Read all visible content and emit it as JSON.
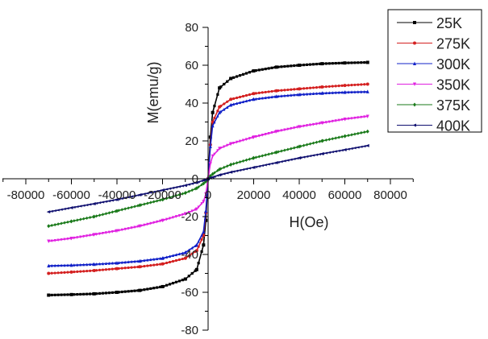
{
  "chart_data": {
    "type": "line",
    "title": "",
    "xlabel": "H(Oe)",
    "ylabel": "M(emu/g)",
    "xlim": [
      -90000,
      90000
    ],
    "ylim": [
      -80,
      80
    ],
    "xticks": [
      -80000,
      -60000,
      -40000,
      -20000,
      0,
      20000,
      40000,
      60000,
      80000
    ],
    "xtick_labels": [
      "-80000",
      "-60000",
      "-40000",
      "-20000",
      "0",
      "20000",
      "40000",
      "60000",
      "80000"
    ],
    "yticks": [
      -80,
      -60,
      -40,
      -20,
      0,
      20,
      40,
      60,
      80
    ],
    "ytick_labels": [
      "-80",
      "-60",
      "-40",
      "-20",
      "0",
      "20",
      "40",
      "60",
      "80"
    ],
    "grid": false,
    "legend_position": "top-right",
    "x": [
      -70000,
      -60000,
      -50000,
      -40000,
      -30000,
      -20000,
      -10000,
      -5000,
      -2000,
      -1000,
      0,
      1000,
      2000,
      5000,
      10000,
      20000,
      30000,
      40000,
      50000,
      60000,
      70000
    ],
    "series": [
      {
        "name": "25K",
        "color": "#000000",
        "marker": "square",
        "values": [
          -61.5,
          -61.2,
          -60.8,
          -60,
          -59,
          -57,
          -53,
          -48,
          -35,
          -22,
          0,
          22,
          35,
          48,
          53,
          57,
          59,
          60,
          60.8,
          61.2,
          61.5
        ]
      },
      {
        "name": "275K",
        "color": "#d42020",
        "marker": "circle",
        "values": [
          -50,
          -49.3,
          -48.5,
          -47.5,
          -46.5,
          -45,
          -42,
          -38,
          -30,
          -18,
          0,
          18,
          30,
          38,
          42,
          45,
          46.5,
          47.5,
          48.5,
          49.3,
          50
        ]
      },
      {
        "name": "300K",
        "color": "#1020c8",
        "marker": "triangle-up",
        "values": [
          -46,
          -45.7,
          -45.2,
          -44.5,
          -43.5,
          -42,
          -39,
          -35,
          -28,
          -17,
          0,
          17,
          28,
          35,
          39,
          42,
          43.5,
          44.5,
          45.2,
          45.7,
          46
        ]
      },
      {
        "name": "350K",
        "color": "#e020e0",
        "marker": "triangle-down",
        "values": [
          -33,
          -31.5,
          -29.5,
          -27.5,
          -25,
          -22,
          -18.5,
          -16,
          -12,
          -8,
          0,
          8,
          12,
          16,
          18.5,
          22,
          25,
          27.5,
          29.5,
          31.5,
          33
        ]
      },
      {
        "name": "375K",
        "color": "#1a7a1a",
        "marker": "diamond",
        "values": [
          -25,
          -22.5,
          -20,
          -17,
          -14,
          -11,
          -7.5,
          -5,
          -2.5,
          -1.5,
          0,
          1.5,
          2.5,
          5,
          7.5,
          11,
          14,
          17,
          20,
          22.5,
          25
        ]
      },
      {
        "name": "400K",
        "color": "#101070",
        "marker": "triangle-left",
        "values": [
          -17.5,
          -15.3,
          -13.2,
          -11,
          -8.5,
          -6,
          -3.5,
          -2,
          -0.8,
          -0.5,
          0,
          0.5,
          0.8,
          2,
          3.5,
          6,
          8.5,
          11,
          13.2,
          15.3,
          17.5
        ]
      }
    ]
  }
}
